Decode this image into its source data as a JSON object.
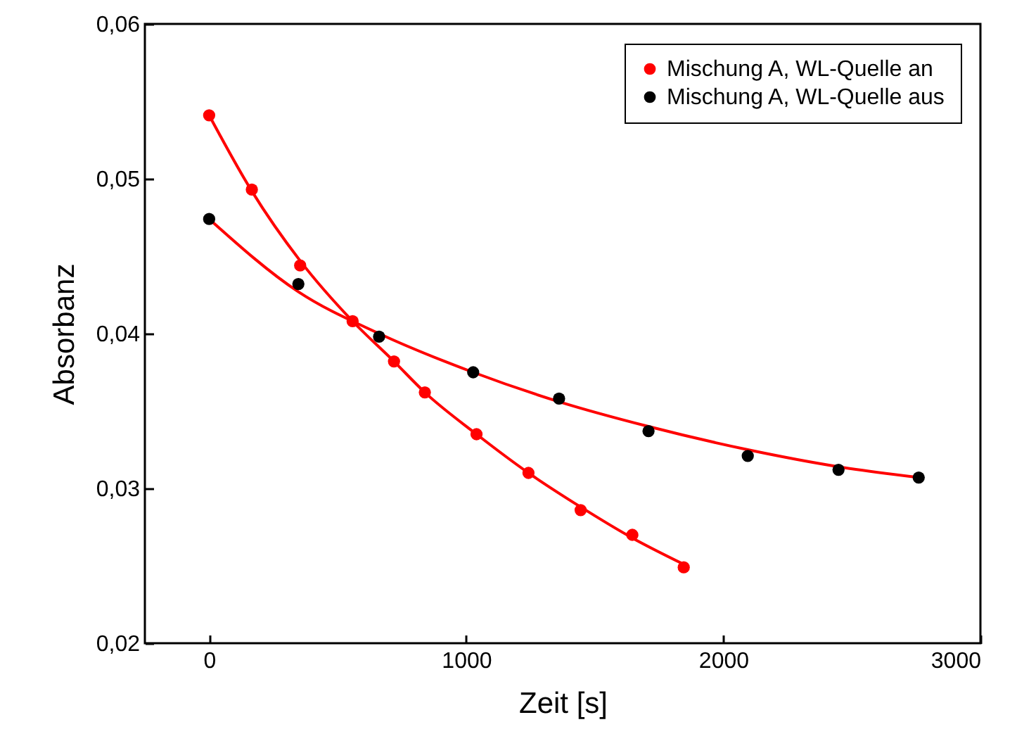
{
  "chart_data": {
    "type": "scatter",
    "xlabel": "Zeit [s]",
    "ylabel": "Absorbanz",
    "xlim": [
      -250,
      3000
    ],
    "xticks": [
      0,
      1000,
      2000,
      3000
    ],
    "ylim": [
      0.02,
      0.06
    ],
    "yticks": [
      {
        "value": 0.02,
        "label": "0,02"
      },
      {
        "value": 0.03,
        "label": "0,03"
      },
      {
        "value": 0.04,
        "label": "0,04"
      },
      {
        "value": 0.05,
        "label": "0,05"
      },
      {
        "value": 0.06,
        "label": "0,06"
      }
    ],
    "legend": "top right",
    "grid": false,
    "series": [
      {
        "name": "Mischung A, WL-Quelle an",
        "color": "#ff0000",
        "marker": "circle",
        "x": [
          0,
          166,
          354,
          558,
          719,
          839,
          1040,
          1242,
          1445,
          1646,
          1846
        ],
        "values": [
          0.0541,
          0.0493,
          0.0444,
          0.0408,
          0.0382,
          0.0362,
          0.0335,
          0.031,
          0.0286,
          0.027,
          0.0249
        ]
      },
      {
        "name": "Mischung A, WL-Quelle aus",
        "color": "#000000",
        "marker": "circle",
        "x": [
          0,
          347,
          661,
          1027,
          1361,
          1709,
          2095,
          2448,
          2760
        ],
        "values": [
          0.0474,
          0.0432,
          0.0398,
          0.0375,
          0.0358,
          0.0337,
          0.0321,
          0.0312,
          0.0307
        ]
      },
      {
        "type": "line",
        "color": "#ff0000",
        "marker": "none",
        "x": [
          0,
          166,
          354,
          558,
          719,
          839,
          1040,
          1242,
          1445,
          1646,
          1846
        ],
        "values": [
          0.0541,
          0.0492,
          0.0447,
          0.0408,
          0.0382,
          0.0362,
          0.0335,
          0.031,
          0.0288,
          0.0268,
          0.0251
        ]
      },
      {
        "type": "line",
        "color": "#ff0000",
        "marker": "none",
        "x": [
          0,
          347,
          661,
          1027,
          1361,
          1709,
          2095,
          2448,
          2760
        ],
        "values": [
          0.0474,
          0.0427,
          0.04,
          0.0375,
          0.0356,
          0.034,
          0.0325,
          0.0314,
          0.0307
        ]
      }
    ]
  }
}
